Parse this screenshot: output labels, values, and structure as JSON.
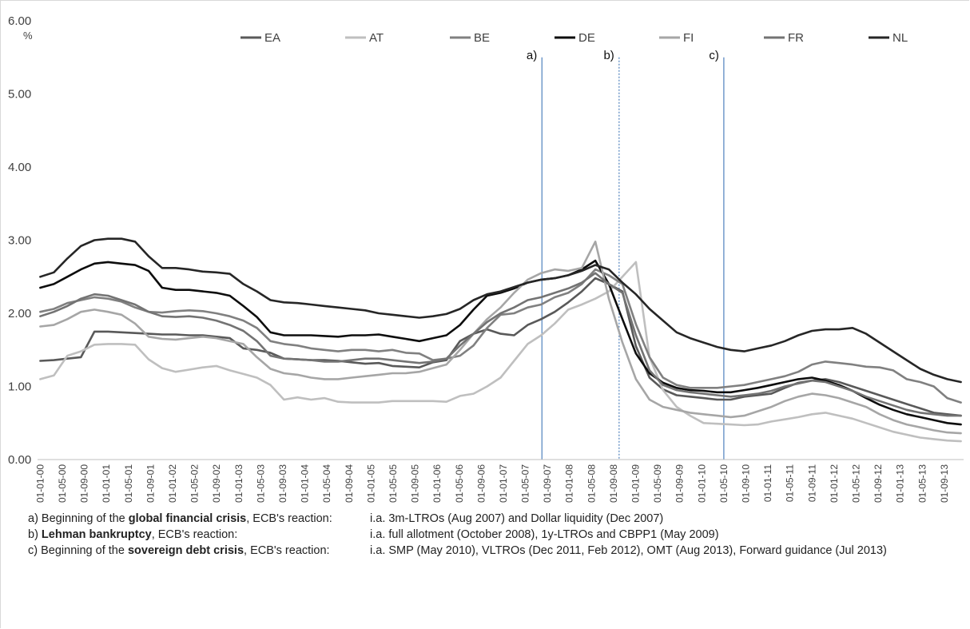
{
  "chart_data": {
    "type": "line",
    "ylabel": "%",
    "ylim": [
      0,
      6
    ],
    "yticks": [
      "0.00",
      "1.00",
      "2.00",
      "3.00",
      "4.00",
      "5.00",
      "6.00"
    ],
    "xtick_labels": [
      "01-01-00",
      "01-05-00",
      "01-09-00",
      "01-01-01",
      "01-05-01",
      "01-09-01",
      "01-01-02",
      "01-05-02",
      "01-09-02",
      "01-01-03",
      "01-05-03",
      "01-09-03",
      "01-01-04",
      "01-05-04",
      "01-09-04",
      "01-01-05",
      "01-05-05",
      "01-09-05",
      "01-01-06",
      "01-05-06",
      "01-09-06",
      "01-01-07",
      "01-05-07",
      "01-09-07",
      "01-01-08",
      "01-05-08",
      "01-09-08",
      "01-01-09",
      "01-05-09",
      "01-09-09",
      "01-01-10",
      "01-05-10",
      "01-09-10",
      "01-01-11",
      "01-05-11",
      "01-09-11",
      "01-01-12",
      "01-05-12",
      "01-09-12",
      "01-01-13",
      "01-05-13",
      "01-09-13"
    ],
    "markers": [
      {
        "label": "a)",
        "at": "Aug 2007"
      },
      {
        "label": "b)",
        "at": "Oct 2008"
      },
      {
        "label": "c)",
        "at": "May 2010"
      }
    ],
    "legend_position": "top",
    "series": [
      {
        "name": "EA",
        "color": "#595959",
        "width": 2.6,
        "values": [
          1.35,
          1.36,
          1.38,
          1.4,
          1.75,
          1.75,
          1.74,
          1.73,
          1.72,
          1.71,
          1.71,
          1.7,
          1.7,
          1.68,
          1.66,
          1.52,
          1.5,
          1.46,
          1.38,
          1.37,
          1.36,
          1.36,
          1.35,
          1.33,
          1.31,
          1.32,
          1.28,
          1.27,
          1.26,
          1.33,
          1.36,
          1.62,
          1.72,
          1.78,
          1.72,
          1.7,
          1.84,
          1.92,
          2.02,
          2.15,
          2.3,
          2.48,
          2.4,
          2.3,
          1.55,
          1.12,
          0.96,
          0.88,
          0.86,
          0.84,
          0.82,
          0.82,
          0.86,
          0.88,
          0.9,
          0.98,
          1.05,
          1.08,
          1.1,
          1.06,
          1.0,
          0.94,
          0.88,
          0.82,
          0.76,
          0.7,
          0.64,
          0.62,
          0.6
        ]
      },
      {
        "name": "AT",
        "color": "#bfbfbf",
        "width": 2.6,
        "values": [
          1.1,
          1.15,
          1.42,
          1.48,
          1.57,
          1.58,
          1.58,
          1.57,
          1.37,
          1.25,
          1.2,
          1.23,
          1.26,
          1.28,
          1.22,
          1.17,
          1.12,
          1.02,
          0.82,
          0.85,
          0.82,
          0.84,
          0.79,
          0.78,
          0.78,
          0.78,
          0.8,
          0.8,
          0.8,
          0.8,
          0.79,
          0.87,
          0.9,
          1.0,
          1.12,
          1.35,
          1.58,
          1.7,
          1.86,
          2.05,
          2.12,
          2.2,
          2.3,
          2.5,
          2.7,
          1.4,
          0.95,
          0.72,
          0.6,
          0.5,
          0.49,
          0.48,
          0.47,
          0.48,
          0.52,
          0.55,
          0.58,
          0.62,
          0.64,
          0.6,
          0.56,
          0.5,
          0.44,
          0.38,
          0.34,
          0.3,
          0.28,
          0.26,
          0.25
        ]
      },
      {
        "name": "BE",
        "color": "#808080",
        "width": 2.6,
        "values": [
          2.02,
          2.06,
          2.14,
          2.18,
          2.22,
          2.2,
          2.16,
          2.08,
          2.02,
          2.01,
          2.03,
          2.04,
          2.03,
          2.0,
          1.96,
          1.9,
          1.8,
          1.62,
          1.58,
          1.56,
          1.52,
          1.5,
          1.48,
          1.5,
          1.5,
          1.48,
          1.5,
          1.46,
          1.45,
          1.36,
          1.38,
          1.42,
          1.56,
          1.8,
          1.98,
          2.0,
          2.08,
          2.12,
          2.22,
          2.28,
          2.4,
          2.6,
          2.52,
          2.4,
          1.85,
          1.4,
          1.12,
          1.02,
          0.98,
          0.98,
          0.98,
          1.0,
          1.02,
          1.06,
          1.1,
          1.14,
          1.2,
          1.3,
          1.34,
          1.32,
          1.3,
          1.27,
          1.26,
          1.22,
          1.1,
          1.06,
          1.0,
          0.84,
          0.78
        ]
      },
      {
        "name": "DE",
        "color": "#0d0d0d",
        "width": 2.6,
        "values": [
          2.35,
          2.4,
          2.5,
          2.6,
          2.68,
          2.7,
          2.68,
          2.66,
          2.58,
          2.35,
          2.32,
          2.32,
          2.3,
          2.28,
          2.24,
          2.1,
          1.95,
          1.74,
          1.7,
          1.7,
          1.7,
          1.69,
          1.68,
          1.7,
          1.7,
          1.71,
          1.68,
          1.65,
          1.62,
          1.66,
          1.7,
          1.84,
          2.05,
          2.24,
          2.28,
          2.34,
          2.42,
          2.46,
          2.48,
          2.52,
          2.6,
          2.72,
          2.4,
          1.92,
          1.45,
          1.18,
          1.05,
          0.98,
          0.95,
          0.94,
          0.92,
          0.92,
          0.95,
          0.98,
          1.02,
          1.06,
          1.1,
          1.12,
          1.08,
          1.02,
          0.94,
          0.84,
          0.75,
          0.68,
          0.62,
          0.58,
          0.54,
          0.5,
          0.48
        ]
      },
      {
        "name": "FI",
        "color": "#a6a6a6",
        "width": 2.6,
        "values": [
          1.82,
          1.84,
          1.92,
          2.02,
          2.05,
          2.02,
          1.98,
          1.86,
          1.68,
          1.65,
          1.64,
          1.66,
          1.68,
          1.66,
          1.62,
          1.58,
          1.4,
          1.24,
          1.18,
          1.16,
          1.12,
          1.1,
          1.1,
          1.12,
          1.14,
          1.16,
          1.18,
          1.18,
          1.2,
          1.25,
          1.3,
          1.5,
          1.72,
          1.92,
          2.08,
          2.28,
          2.46,
          2.55,
          2.6,
          2.58,
          2.62,
          2.98,
          2.2,
          1.6,
          1.1,
          0.82,
          0.72,
          0.68,
          0.64,
          0.62,
          0.6,
          0.58,
          0.6,
          0.66,
          0.72,
          0.8,
          0.86,
          0.9,
          0.88,
          0.84,
          0.78,
          0.72,
          0.62,
          0.54,
          0.48,
          0.44,
          0.4,
          0.37,
          0.36
        ]
      },
      {
        "name": "FR",
        "color": "#737373",
        "width": 2.6,
        "values": [
          1.96,
          2.02,
          2.1,
          2.2,
          2.26,
          2.24,
          2.18,
          2.12,
          2.02,
          1.96,
          1.95,
          1.96,
          1.94,
          1.9,
          1.84,
          1.76,
          1.62,
          1.42,
          1.38,
          1.37,
          1.36,
          1.34,
          1.34,
          1.36,
          1.38,
          1.38,
          1.36,
          1.34,
          1.32,
          1.34,
          1.38,
          1.56,
          1.72,
          1.88,
          2.0,
          2.08,
          2.18,
          2.22,
          2.28,
          2.34,
          2.42,
          2.55,
          2.4,
          2.28,
          1.7,
          1.22,
          1.02,
          0.95,
          0.92,
          0.9,
          0.88,
          0.86,
          0.88,
          0.9,
          0.94,
          1.0,
          1.04,
          1.08,
          1.06,
          1.0,
          0.94,
          0.86,
          0.8,
          0.74,
          0.68,
          0.64,
          0.62,
          0.6,
          0.6
        ]
      },
      {
        "name": "NL",
        "color": "#262626",
        "width": 2.6,
        "values": [
          2.5,
          2.56,
          2.75,
          2.92,
          3.0,
          3.02,
          3.02,
          2.98,
          2.78,
          2.62,
          2.62,
          2.6,
          2.57,
          2.56,
          2.54,
          2.4,
          2.3,
          2.18,
          2.15,
          2.14,
          2.12,
          2.1,
          2.08,
          2.06,
          2.04,
          2.0,
          1.98,
          1.96,
          1.94,
          1.96,
          1.99,
          2.06,
          2.18,
          2.26,
          2.3,
          2.36,
          2.42,
          2.46,
          2.48,
          2.52,
          2.58,
          2.66,
          2.6,
          2.42,
          2.26,
          2.06,
          1.9,
          1.74,
          1.66,
          1.6,
          1.54,
          1.5,
          1.48,
          1.52,
          1.56,
          1.62,
          1.7,
          1.76,
          1.78,
          1.78,
          1.8,
          1.72,
          1.6,
          1.48,
          1.36,
          1.24,
          1.16,
          1.1,
          1.06
        ]
      }
    ]
  },
  "notes": [
    {
      "pre": "a) Beginning of the ",
      "bold": "global financial crisis",
      "post": ", ECB's reaction:",
      "right": "i.a. 3m-LTROs (Aug 2007) and Dollar liquidity (Dec 2007)"
    },
    {
      "pre": "b) ",
      "bold": "Lehman bankruptcy",
      "post": ", ECB's reaction:",
      "right": "i.a. full allotment (October 2008),  1y-LTROs and CBPP1 (May 2009)"
    },
    {
      "pre": "c) Beginning of the ",
      "bold": "sovereign debt crisis",
      "post": ", ECB's reaction:",
      "right": "i.a. SMP (May 2010), VLTROs (Dec 2011, Feb 2012), OMT (Aug  2013), Forward guidance (Jul 2013)"
    }
  ]
}
